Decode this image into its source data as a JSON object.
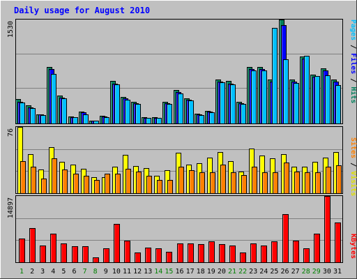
{
  "title": "Daily usage for August 2010",
  "colors": {
    "background": "#c0c0c0",
    "title": "#0000ff",
    "hits": "#00805c",
    "files": "#0000ff",
    "pages": "#00c0ff",
    "visits": "#ffff00",
    "sites": "#ff8000",
    "kbytes": "#ff0000",
    "weekday_label": "#000000",
    "weekend_label": "#008000",
    "grid": "#808080"
  },
  "chart_data": [
    {
      "type": "bar",
      "panel": "hits-files-pages",
      "ymax_label": "1530",
      "ymax": 1530,
      "ylabel_parts": [
        "Pages",
        "Files",
        "Hits"
      ],
      "categories": [
        "1",
        "2",
        "3",
        "4",
        "5",
        "6",
        "7",
        "8",
        "9",
        "10",
        "11",
        "12",
        "13",
        "14",
        "15",
        "16",
        "17",
        "18",
        "19",
        "20",
        "21",
        "22",
        "23",
        "24",
        "25",
        "26",
        "27",
        "28",
        "29",
        "30",
        "31"
      ],
      "series": [
        {
          "name": "Hits",
          "values": [
            356,
            267,
            134,
            832,
            409,
            103,
            172,
            45,
            112,
            623,
            392,
            320,
            89,
            89,
            320,
            490,
            374,
            145,
            183,
            650,
            623,
            320,
            832,
            832,
            650,
            1530,
            650,
            988,
            720,
            810,
            650
          ]
        },
        {
          "name": "Files",
          "values": [
            320,
            240,
            130,
            800,
            380,
            95,
            160,
            40,
            100,
            590,
            370,
            300,
            85,
            85,
            300,
            460,
            350,
            135,
            170,
            620,
            590,
            300,
            800,
            800,
            620,
            1450,
            620,
            950,
            690,
            780,
            620
          ]
        },
        {
          "name": "Pages",
          "values": [
            310,
            230,
            120,
            730,
            370,
            90,
            130,
            40,
            90,
            570,
            350,
            290,
            80,
            80,
            290,
            440,
            340,
            125,
            160,
            610,
            580,
            290,
            780,
            780,
            1410,
            945,
            595,
            1000,
            700,
            710,
            560
          ]
        }
      ]
    },
    {
      "type": "bar",
      "panel": "visits-sites",
      "ymax_label": "76",
      "ymax": 76,
      "ylabel_parts": [
        "Sites",
        "Visits"
      ],
      "categories": [
        "1",
        "2",
        "3",
        "4",
        "5",
        "6",
        "7",
        "8",
        "9",
        "10",
        "11",
        "12",
        "13",
        "14",
        "15",
        "16",
        "17",
        "18",
        "19",
        "20",
        "21",
        "22",
        "23",
        "24",
        "25",
        "26",
        "27",
        "28",
        "29",
        "30",
        "31"
      ],
      "series": [
        {
          "name": "Visits",
          "values": [
            76,
            45,
            27,
            53,
            36,
            33,
            28,
            18,
            18,
            30,
            44,
            31,
            29,
            20,
            26,
            46,
            33,
            34,
            41,
            47,
            37,
            25,
            51,
            43,
            40,
            45,
            30,
            30,
            36,
            41,
            47
          ]
        },
        {
          "name": "Sites",
          "values": [
            37,
            30,
            17,
            40,
            27,
            22,
            20,
            15,
            22,
            22,
            28,
            25,
            20,
            15,
            15,
            30,
            26,
            24,
            24,
            33,
            24,
            21,
            30,
            24,
            24,
            35,
            25,
            24,
            24,
            30,
            32
          ]
        }
      ]
    },
    {
      "type": "bar",
      "panel": "kbytes",
      "ymax_label": "14897",
      "ymax": 14897,
      "ylabel_parts": [
        "KBytes"
      ],
      "categories": [
        "1",
        "2",
        "3",
        "4",
        "5",
        "6",
        "7",
        "8",
        "9",
        "10",
        "11",
        "12",
        "13",
        "14",
        "15",
        "16",
        "17",
        "18",
        "19",
        "20",
        "21",
        "22",
        "23",
        "24",
        "25",
        "26",
        "27",
        "28",
        "29",
        "30",
        "31"
      ],
      "series": [
        {
          "name": "KBytes",
          "values": [
            5300,
            7700,
            3800,
            6500,
            4300,
            3600,
            3600,
            1100,
            3200,
            8600,
            4800,
            2200,
            3300,
            3100,
            2300,
            4200,
            4300,
            4000,
            4700,
            4000,
            3800,
            2200,
            4300,
            3700,
            4700,
            10800,
            4900,
            3200,
            6500,
            14897,
            9000
          ]
        }
      ]
    }
  ],
  "x_labels": [
    {
      "label": "1",
      "weekend": true
    },
    {
      "label": "2",
      "weekend": false
    },
    {
      "label": "3",
      "weekend": false
    },
    {
      "label": "4",
      "weekend": false
    },
    {
      "label": "5",
      "weekend": false
    },
    {
      "label": "6",
      "weekend": false
    },
    {
      "label": "7",
      "weekend": true
    },
    {
      "label": "8",
      "weekend": true
    },
    {
      "label": "9",
      "weekend": false
    },
    {
      "label": "10",
      "weekend": false
    },
    {
      "label": "11",
      "weekend": false
    },
    {
      "label": "12",
      "weekend": false
    },
    {
      "label": "13",
      "weekend": false
    },
    {
      "label": "14",
      "weekend": true
    },
    {
      "label": "15",
      "weekend": true
    },
    {
      "label": "16",
      "weekend": false
    },
    {
      "label": "17",
      "weekend": false
    },
    {
      "label": "18",
      "weekend": false
    },
    {
      "label": "19",
      "weekend": false
    },
    {
      "label": "20",
      "weekend": false
    },
    {
      "label": "21",
      "weekend": true
    },
    {
      "label": "22",
      "weekend": true
    },
    {
      "label": "23",
      "weekend": false
    },
    {
      "label": "24",
      "weekend": false
    },
    {
      "label": "25",
      "weekend": false
    },
    {
      "label": "26",
      "weekend": false
    },
    {
      "label": "27",
      "weekend": false
    },
    {
      "label": "28",
      "weekend": true
    },
    {
      "label": "29",
      "weekend": true
    },
    {
      "label": "30",
      "weekend": false
    },
    {
      "label": "31",
      "weekend": false
    }
  ]
}
